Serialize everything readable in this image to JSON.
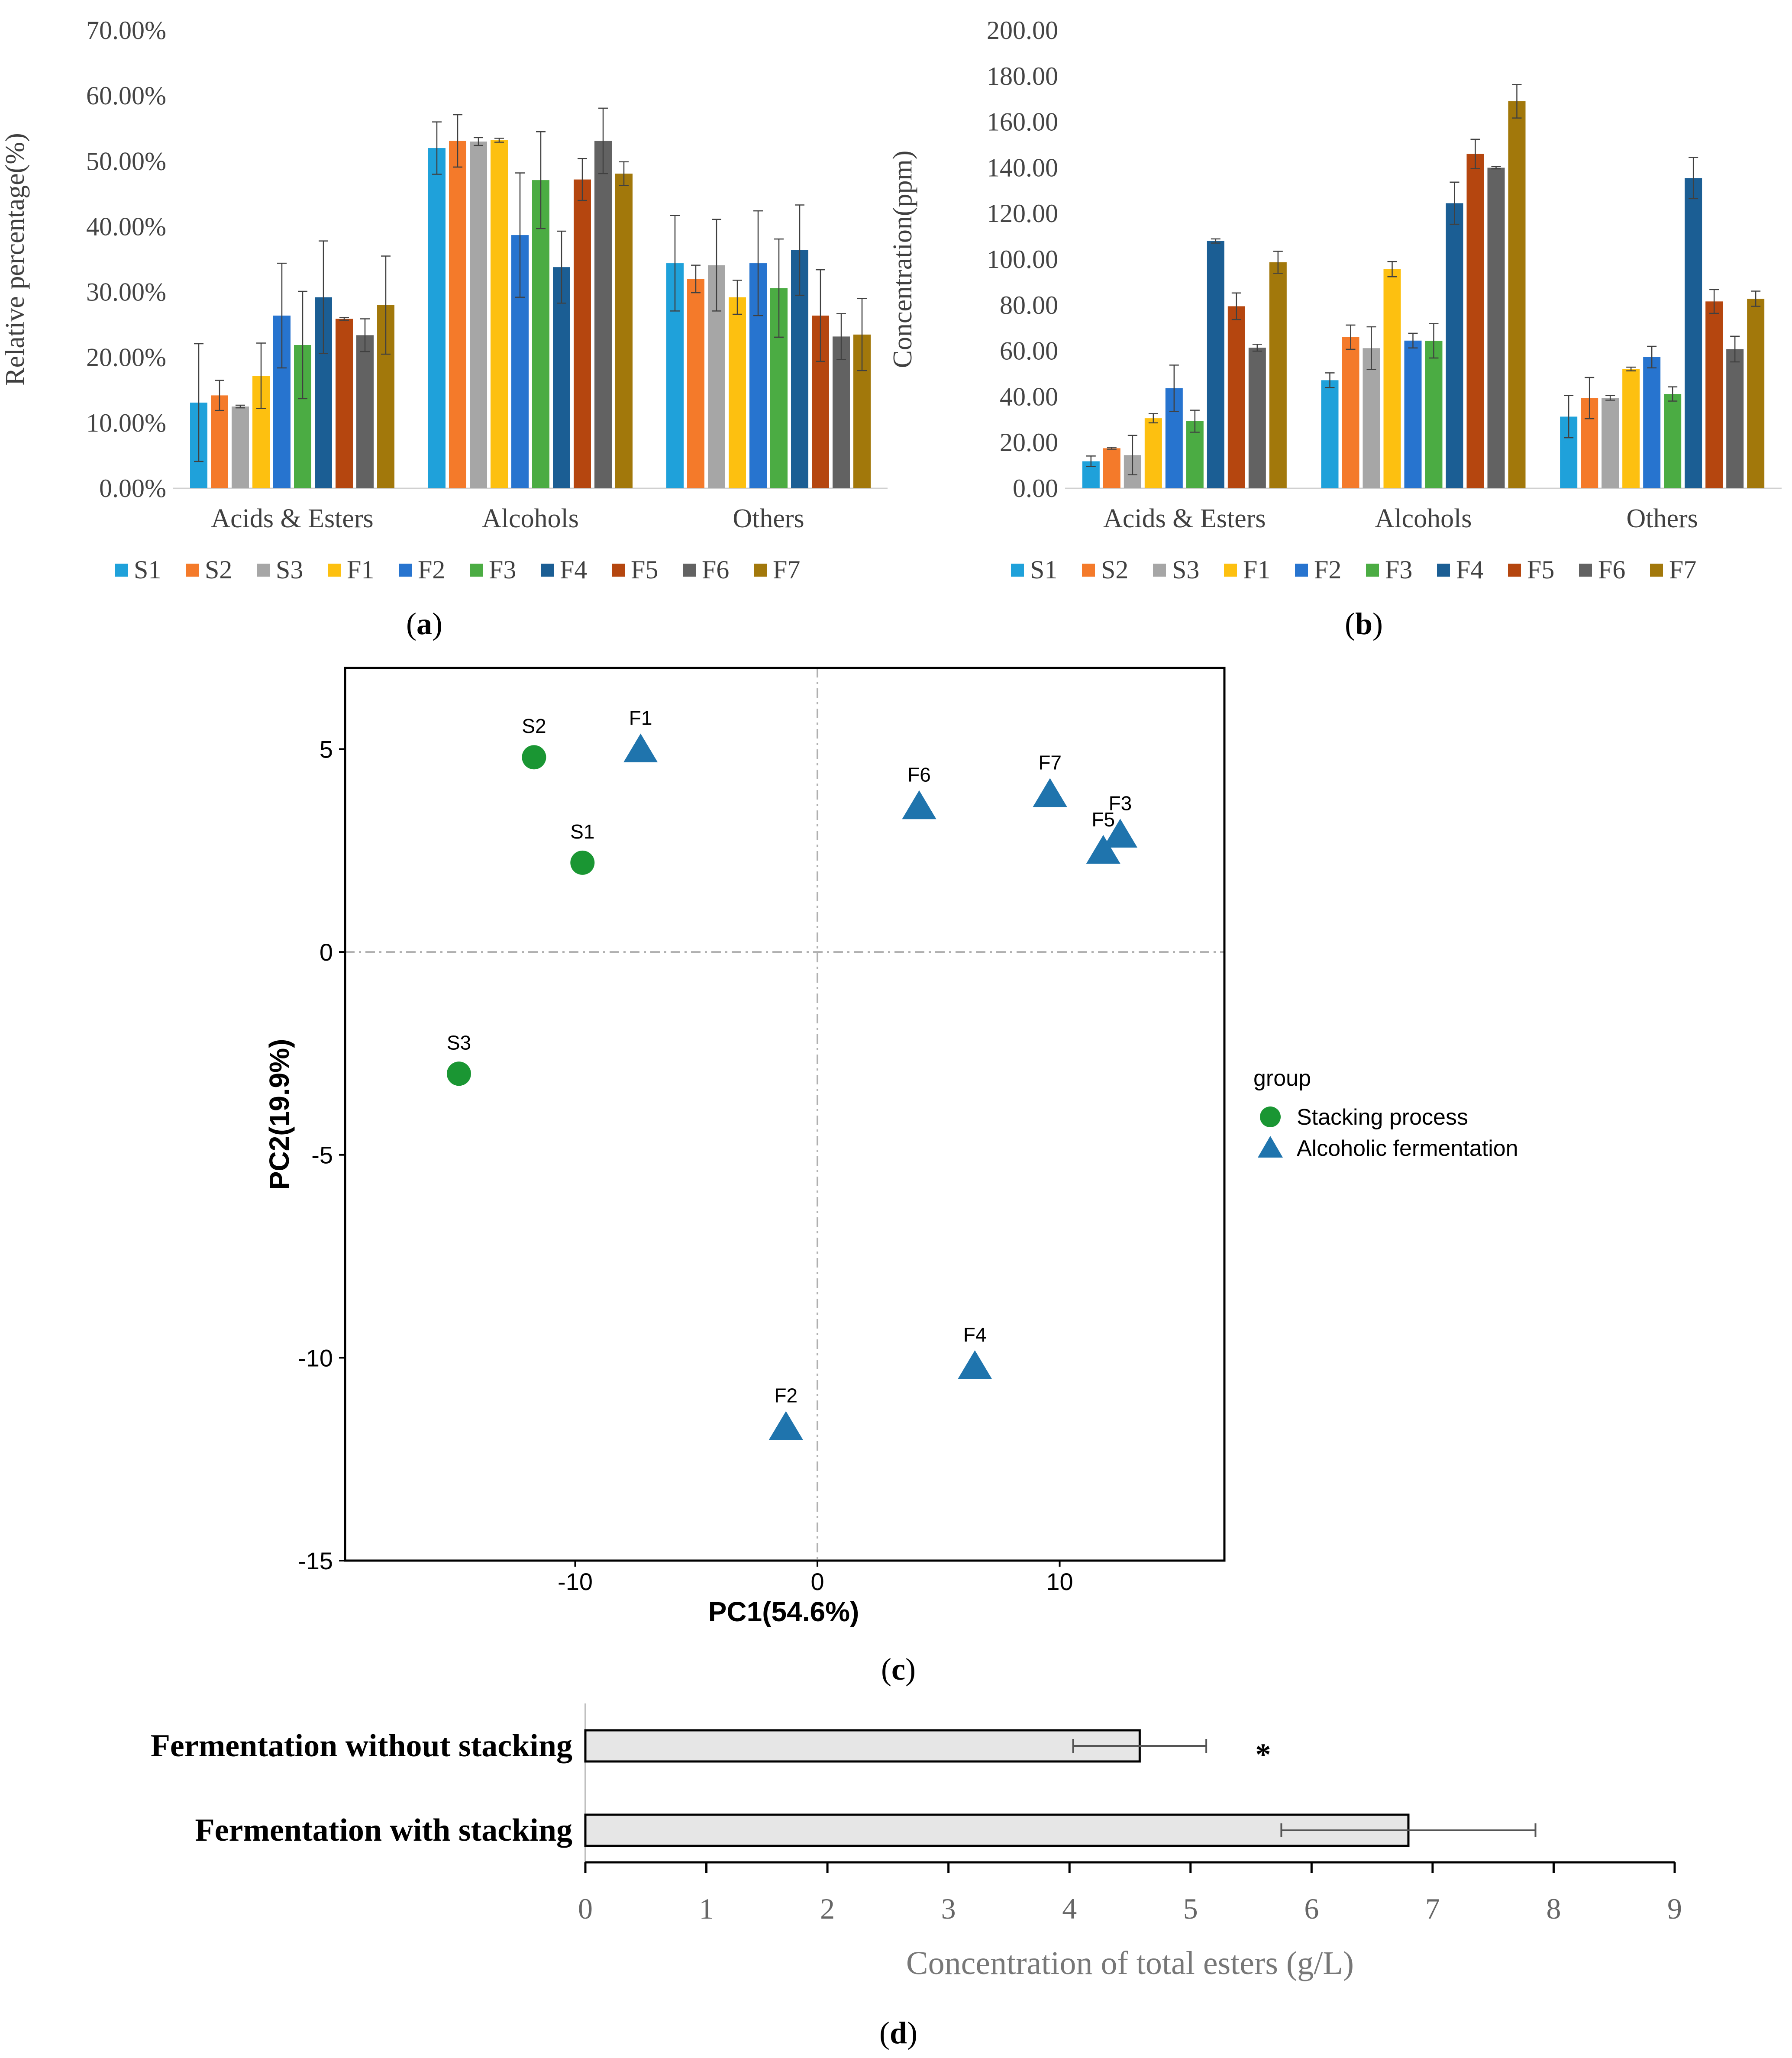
{
  "colors": {
    "S1": "#1fa1da",
    "S2": "#f47a2a",
    "S3": "#a6a6a6",
    "F1": "#fdc010",
    "F2": "#2774cf",
    "F3": "#4bac43",
    "F4": "#1b5e94",
    "F5": "#b5460f",
    "F6": "#626262",
    "F7": "#a2780b",
    "stacking": "#1a9633",
    "alcoholic": "#1f74ad",
    "bar_d_fill": "#e6e6e6"
  },
  "chart_data": [
    {
      "panel": "(a)",
      "panel_letter": "a",
      "type": "bar",
      "title": "",
      "xlabel": "",
      "ylabel": "Relative percentage(%)",
      "ylim": [
        0,
        70
      ],
      "yticks": [
        "0.00%",
        "10.00%",
        "20.00%",
        "30.00%",
        "40.00%",
        "50.00%",
        "60.00%",
        "70.00%"
      ],
      "legend_position": "bottom",
      "categories": [
        "Acids & Esters",
        "Alcohols",
        "Others"
      ],
      "series": [
        {
          "name": "S1",
          "values": [
            13.1,
            52.0,
            34.4
          ],
          "errors": [
            9.0,
            4.0,
            7.3
          ]
        },
        {
          "name": "S2",
          "values": [
            14.2,
            53.1,
            32.0
          ],
          "errors": [
            2.3,
            4.0,
            2.1
          ]
        },
        {
          "name": "S3",
          "values": [
            12.5,
            53.0,
            34.1
          ],
          "errors": [
            0.2,
            0.6,
            7.0
          ]
        },
        {
          "name": "F1",
          "values": [
            17.2,
            53.2,
            29.2
          ],
          "errors": [
            5.0,
            0.3,
            2.6
          ]
        },
        {
          "name": "F2",
          "values": [
            26.4,
            38.7,
            34.4
          ],
          "errors": [
            8.0,
            9.5,
            8.0
          ]
        },
        {
          "name": "F3",
          "values": [
            21.9,
            47.1,
            30.6
          ],
          "errors": [
            8.2,
            7.4,
            7.5
          ]
        },
        {
          "name": "F4",
          "values": [
            29.2,
            33.8,
            36.4
          ],
          "errors": [
            8.6,
            5.5,
            6.9
          ]
        },
        {
          "name": "F5",
          "values": [
            25.9,
            47.2,
            26.4
          ],
          "errors": [
            0.2,
            3.2,
            7.0
          ]
        },
        {
          "name": "F6",
          "values": [
            23.4,
            53.1,
            23.2
          ],
          "errors": [
            2.5,
            5.0,
            3.5
          ]
        },
        {
          "name": "F7",
          "values": [
            28.0,
            48.1,
            23.5
          ],
          "errors": [
            7.5,
            1.8,
            5.5
          ]
        }
      ]
    },
    {
      "panel": "(b)",
      "panel_letter": "b",
      "type": "bar",
      "title": "",
      "xlabel": "",
      "ylabel": "Concentration(ppm)",
      "ylim": [
        0,
        200
      ],
      "yticks": [
        "0.00",
        "20.00",
        "40.00",
        "60.00",
        "80.00",
        "100.00",
        "120.00",
        "140.00",
        "160.00",
        "180.00",
        "200.00"
      ],
      "legend_position": "bottom",
      "categories": [
        "Acids & Esters",
        "Alcohols",
        "Others"
      ],
      "series": [
        {
          "name": "S1",
          "values": [
            11.8,
            47.2,
            31.3
          ],
          "errors": [
            2.3,
            3.2,
            9.2
          ]
        },
        {
          "name": "S2",
          "values": [
            17.5,
            66.0,
            39.4
          ],
          "errors": [
            0.4,
            5.3,
            9.0
          ]
        },
        {
          "name": "S3",
          "values": [
            14.5,
            61.2,
            39.5
          ],
          "errors": [
            8.6,
            9.3,
            1.0
          ]
        },
        {
          "name": "F1",
          "values": [
            30.6,
            95.7,
            52.1
          ],
          "errors": [
            2.0,
            3.3,
            0.8
          ]
        },
        {
          "name": "F2",
          "values": [
            43.7,
            64.5,
            57.3
          ],
          "errors": [
            10.1,
            3.2,
            4.7
          ]
        },
        {
          "name": "F3",
          "values": [
            29.3,
            64.4,
            41.2
          ],
          "errors": [
            4.8,
            7.5,
            3.1
          ]
        },
        {
          "name": "F4",
          "values": [
            108.0,
            124.5,
            135.5
          ],
          "errors": [
            0.9,
            9.2,
            9.0
          ]
        },
        {
          "name": "F5",
          "values": [
            79.5,
            146.0,
            81.6
          ],
          "errors": [
            5.8,
            6.4,
            5.2
          ]
        },
        {
          "name": "F6",
          "values": [
            61.4,
            140.0,
            60.8
          ],
          "errors": [
            1.5,
            0.5,
            5.6
          ]
        },
        {
          "name": "F7",
          "values": [
            98.7,
            169.0,
            82.8
          ],
          "errors": [
            4.8,
            7.3,
            3.3
          ]
        }
      ]
    },
    {
      "panel": "(c)",
      "panel_letter": "c",
      "type": "scatter",
      "title": "",
      "xlabel": "PC1(54.6%)",
      "ylabel": "PC2(19.9%)",
      "xlim": [
        -19.5,
        16.8
      ],
      "ylim": [
        -15,
        7
      ],
      "xticks": [
        -10,
        0,
        10
      ],
      "yticks": [
        5,
        0,
        -5,
        -10,
        -15
      ],
      "reference_lines": {
        "x": 0,
        "y": 0
      },
      "legend_title": "group",
      "legend_position": "right",
      "groups": [
        {
          "name": "Stacking process",
          "marker": "circle",
          "color_key": "stacking"
        },
        {
          "name": "Alcoholic fermentation",
          "marker": "triangle",
          "color_key": "alcoholic"
        }
      ],
      "points": [
        {
          "label": "S1",
          "group": 0,
          "x": -9.7,
          "y": 2.2
        },
        {
          "label": "S2",
          "group": 0,
          "x": -11.7,
          "y": 4.8
        },
        {
          "label": "S3",
          "group": 0,
          "x": -14.8,
          "y": -3.0
        },
        {
          "label": "F1",
          "group": 1,
          "x": -7.3,
          "y": 5.0
        },
        {
          "label": "F2",
          "group": 1,
          "x": -1.3,
          "y": -11.7
        },
        {
          "label": "F3",
          "group": 1,
          "x": 12.5,
          "y": 2.9
        },
        {
          "label": "F4",
          "group": 1,
          "x": 6.5,
          "y": -10.2
        },
        {
          "label": "F5",
          "group": 1,
          "x": 11.8,
          "y": 2.5
        },
        {
          "label": "F6",
          "group": 1,
          "x": 4.2,
          "y": 3.6
        },
        {
          "label": "F7",
          "group": 1,
          "x": 9.6,
          "y": 3.9
        }
      ]
    },
    {
      "panel": "(d)",
      "panel_letter": "d",
      "type": "bar",
      "orientation": "horizontal",
      "title": "",
      "xlabel": "Concentration of total esters (g/L)",
      "ylabel": "",
      "xlim": [
        0,
        9
      ],
      "xticks": [
        "0",
        "1",
        "2",
        "3",
        "4",
        "5",
        "6",
        "7",
        "8",
        "9"
      ],
      "categories": [
        "Fermentation without stacking",
        "Fermentation with stacking"
      ],
      "values": [
        4.58,
        6.8
      ],
      "errors": [
        0.55,
        1.05
      ],
      "annotations": [
        {
          "category": "Fermentation without stacking",
          "text": "*",
          "x": 5.6
        }
      ]
    }
  ]
}
